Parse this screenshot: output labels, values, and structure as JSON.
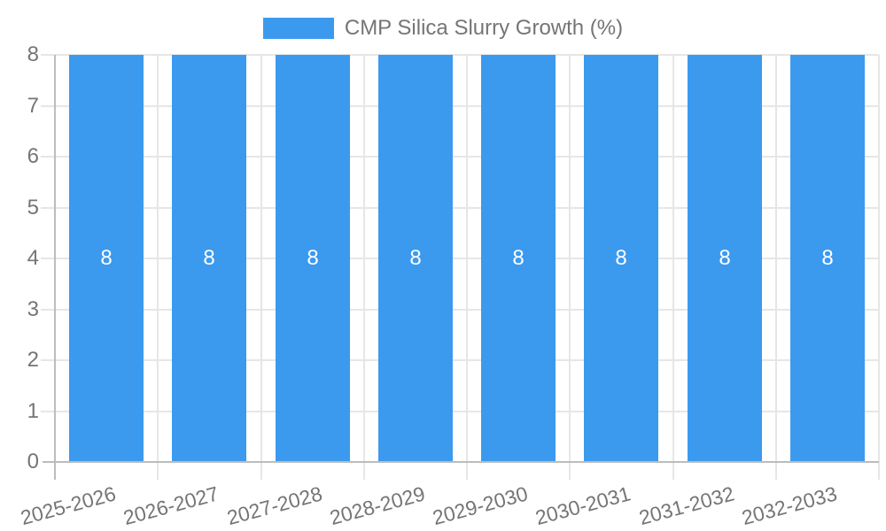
{
  "chart_data": {
    "type": "bar",
    "title": "",
    "legend": {
      "label": "CMP Silica Slurry Growth (%)",
      "position": "top"
    },
    "categories": [
      "2025-2026",
      "2026-2027",
      "2027-2028",
      "2028-2029",
      "2029-2030",
      "2030-2031",
      "2031-2032",
      "2032-2033"
    ],
    "series": [
      {
        "name": "CMP Silica Slurry Growth (%)",
        "values": [
          8,
          8,
          8,
          8,
          8,
          8,
          8,
          8
        ]
      }
    ],
    "value_labels": [
      "8",
      "8",
      "8",
      "8",
      "8",
      "8",
      "8",
      "8"
    ],
    "xlabel": "",
    "ylabel": "",
    "ylim": [
      0,
      8
    ],
    "yticks": [
      "0",
      "1",
      "2",
      "3",
      "4",
      "5",
      "6",
      "7",
      "8"
    ],
    "grid": true,
    "x_tick_rotation_deg": -15,
    "colors": {
      "bar": "#3b9aee",
      "bar_value_label": "#ffffff",
      "axis_text": "#757575",
      "grid_line": "#e6e6e6",
      "axis_line": "#bcbcbc",
      "background": "#ffffff"
    }
  }
}
